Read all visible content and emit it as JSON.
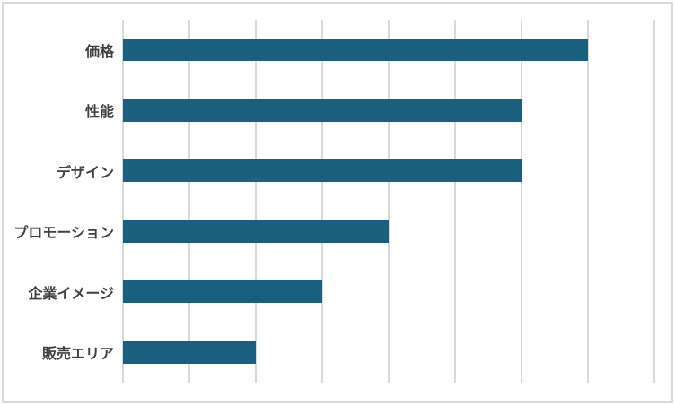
{
  "chart_data": {
    "type": "bar",
    "orientation": "horizontal",
    "title": "",
    "xlabel": "",
    "ylabel": "",
    "categories": [
      "価格",
      "性能",
      "デザイン",
      "プロモーション",
      "企業イメージ",
      "販売エリア"
    ],
    "values": [
      7,
      6,
      6,
      4,
      3,
      2
    ],
    "xlim": [
      0,
      8
    ],
    "grid_step": 1,
    "grid": "vertical major gridlines only, no tick labels",
    "axis_tick_labels_visible": false,
    "legend": "none",
    "bar_color": "#1A5F7E",
    "gridline_color": "#D9D9D9",
    "label_color": "#404040",
    "frame_border_color": "#D9D9D9",
    "background_color": "#FFFFFF"
  }
}
